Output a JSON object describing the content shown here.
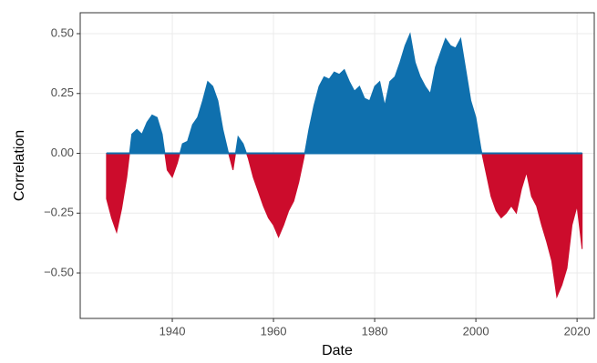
{
  "chart_data": {
    "type": "area",
    "x_label": "Date",
    "y_label": "Correlation",
    "x": [
      1927,
      1928,
      1929,
      1930,
      1931,
      1932,
      1933,
      1934,
      1935,
      1936,
      1937,
      1938,
      1939,
      1940,
      1941,
      1942,
      1943,
      1944,
      1945,
      1946,
      1947,
      1948,
      1949,
      1950,
      1951,
      1952,
      1953,
      1954,
      1955,
      1956,
      1957,
      1958,
      1959,
      1960,
      1961,
      1962,
      1963,
      1964,
      1965,
      1966,
      1967,
      1968,
      1969,
      1970,
      1971,
      1972,
      1973,
      1974,
      1975,
      1976,
      1977,
      1978,
      1979,
      1980,
      1981,
      1982,
      1983,
      1984,
      1985,
      1986,
      1987,
      1988,
      1989,
      1990,
      1991,
      1992,
      1993,
      1994,
      1995,
      1996,
      1997,
      1998,
      1999,
      2000,
      2001,
      2002,
      2003,
      2004,
      2005,
      2006,
      2007,
      2008,
      2009,
      2010,
      2011,
      2012,
      2013,
      2014,
      2015,
      2016,
      2017,
      2018,
      2019,
      2020,
      2021
    ],
    "values": [
      -0.19,
      -0.27,
      -0.33,
      -0.23,
      -0.1,
      0.08,
      0.1,
      0.08,
      0.13,
      0.16,
      0.15,
      0.08,
      -0.07,
      -0.1,
      -0.04,
      0.04,
      0.05,
      0.12,
      0.15,
      0.22,
      0.3,
      0.28,
      0.22,
      0.1,
      0.01,
      -0.07,
      0.07,
      0.04,
      -0.02,
      -0.1,
      -0.16,
      -0.22,
      -0.27,
      -0.3,
      -0.35,
      -0.3,
      -0.24,
      -0.2,
      -0.12,
      -0.02,
      0.1,
      0.2,
      0.28,
      0.32,
      0.31,
      0.34,
      0.33,
      0.35,
      0.3,
      0.26,
      0.28,
      0.23,
      0.22,
      0.28,
      0.3,
      0.2,
      0.3,
      0.32,
      0.38,
      0.45,
      0.5,
      0.38,
      0.32,
      0.28,
      0.25,
      0.36,
      0.42,
      0.48,
      0.45,
      0.44,
      0.48,
      0.35,
      0.22,
      0.15,
      0.02,
      -0.08,
      -0.18,
      -0.24,
      -0.27,
      -0.25,
      -0.22,
      -0.25,
      -0.15,
      -0.08,
      -0.18,
      -0.22,
      -0.3,
      -0.37,
      -0.45,
      -0.6,
      -0.55,
      -0.48,
      -0.3,
      -0.22,
      -0.4
    ],
    "positive_color": "#0f70ae",
    "negative_color": "#cc0c2c",
    "xlim": [
      1921.8,
      2023.4
    ],
    "xticks": [
      1940,
      1960,
      1980,
      2000,
      2020
    ],
    "ylim": [
      -0.69,
      0.5875
    ],
    "yticks": [
      {
        "value": -0.5,
        "label": "−0.50"
      },
      {
        "value": -0.25,
        "label": "−0.25"
      },
      {
        "value": 0,
        "label": "0.00"
      },
      {
        "value": 0.25,
        "label": "0.25"
      },
      {
        "value": 0.5,
        "label": "0.50"
      }
    ],
    "grid": true
  }
}
